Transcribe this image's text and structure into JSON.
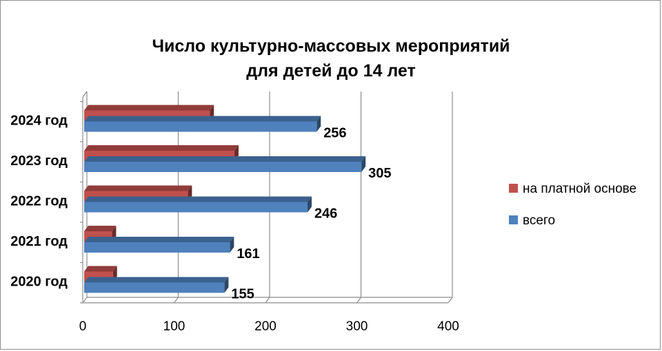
{
  "chart_data": {
    "type": "bar",
    "orientation": "horizontal",
    "title_lines": [
      "Число культурно-массовых мероприятий",
      "для детей до 14 лет"
    ],
    "categories": [
      "2020 год",
      "2021 год",
      "2022 год",
      "2023 год",
      "2024 год"
    ],
    "series": [
      {
        "name": "на платной основе",
        "color": "#c0504d",
        "values": [
          33,
          32,
          115,
          166,
          139
        ]
      },
      {
        "name": "всего",
        "color": "#4f81bd",
        "values": [
          155,
          161,
          246,
          305,
          256
        ]
      }
    ],
    "xlim": [
      0,
      400
    ],
    "xticks": [
      "0",
      "100",
      "200",
      "300",
      "400"
    ],
    "grid": true,
    "legend_position": "right",
    "three_d": true
  }
}
